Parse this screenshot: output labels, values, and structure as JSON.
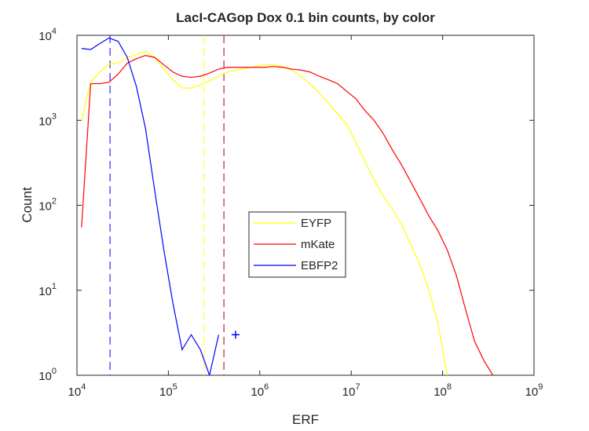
{
  "chart_data": {
    "type": "line",
    "title": "LacI-CAGop Dox 0.1 bin counts, by color",
    "x_label": "ERF",
    "y_label": "Count",
    "x_scale": "log",
    "y_scale": "log",
    "xlim": [
      10000,
      1000000000
    ],
    "ylim": [
      1,
      10000
    ],
    "xticks": [
      {
        "value": 10000,
        "label": "10^4"
      },
      {
        "value": 100000,
        "label": "10^5"
      },
      {
        "value": 1000000,
        "label": "10^6"
      },
      {
        "value": 10000000,
        "label": "10^7"
      },
      {
        "value": 100000000,
        "label": "10^8"
      },
      {
        "value": 1000000000,
        "label": "10^9"
      }
    ],
    "yticks": [
      {
        "value": 1,
        "label": "10^0"
      },
      {
        "value": 10,
        "label": "10^1"
      },
      {
        "value": 100,
        "label": "10^2"
      },
      {
        "value": 1000,
        "label": "10^3"
      },
      {
        "value": 10000,
        "label": "10^4"
      }
    ],
    "x": [
      11220,
      14130,
      17780,
      22390,
      28180,
      35480,
      44670,
      56230,
      70790,
      89130,
      112200,
      141300,
      177800,
      223900,
      281800,
      354800,
      446700,
      562300,
      707900,
      891300,
      1122000,
      1413000,
      1778000,
      2239000,
      2818000,
      3548000,
      4467000,
      5623000,
      7079000,
      8913000,
      11220000,
      14130000,
      17780000,
      22390000,
      28180000,
      35480000,
      44670000,
      56230000,
      70790000,
      89130000,
      112200000,
      141300000,
      177800000,
      223900000,
      281800000,
      354800000
    ],
    "series": [
      {
        "name": "EYFP",
        "color": "#ffff00",
        "values": [
          1000,
          2800,
          3700,
          4600,
          4700,
          5500,
          6000,
          6500,
          5500,
          4000,
          3000,
          2400,
          2400,
          2600,
          2900,
          3300,
          3700,
          3900,
          4100,
          4300,
          4500,
          4500,
          4300,
          3900,
          3300,
          2700,
          2100,
          1600,
          1200,
          900,
          550,
          330,
          200,
          130,
          90,
          60,
          35,
          20,
          10,
          4,
          1,
          null,
          null,
          null,
          null,
          null
        ]
      },
      {
        "name": "mKate",
        "color": "#ff0000",
        "values": [
          55,
          2700,
          2700,
          2800,
          3500,
          4700,
          5300,
          5800,
          5500,
          4500,
          3700,
          3300,
          3200,
          3300,
          3600,
          4000,
          4200,
          4200,
          4200,
          4200,
          4200,
          4300,
          4200,
          4000,
          3900,
          3700,
          3300,
          3000,
          2700,
          2200,
          1800,
          1300,
          1000,
          700,
          450,
          300,
          190,
          120,
          75,
          50,
          30,
          15,
          6,
          2.5,
          1.5,
          1
        ]
      },
      {
        "name": "EBFP2",
        "color": "#0000ff",
        "values": [
          7000,
          6800,
          8000,
          9300,
          8500,
          5500,
          2500,
          800,
          150,
          30,
          7,
          2,
          3,
          2,
          1,
          3,
          null,
          null,
          null,
          null,
          null,
          null,
          null,
          null,
          null,
          null,
          null,
          null,
          null,
          null,
          null,
          null,
          null,
          null,
          null,
          null,
          null,
          null,
          null,
          null,
          null,
          null,
          null,
          null,
          null,
          null
        ]
      }
    ],
    "vlines": [
      {
        "x": 23000,
        "color": "#0000ff"
      },
      {
        "x": 246000,
        "color": "#ffff00"
      },
      {
        "x": 405000,
        "color": "#a00000"
      }
    ],
    "points": [
      {
        "x": 543000,
        "y": 3,
        "color": "#0000ff"
      }
    ]
  }
}
